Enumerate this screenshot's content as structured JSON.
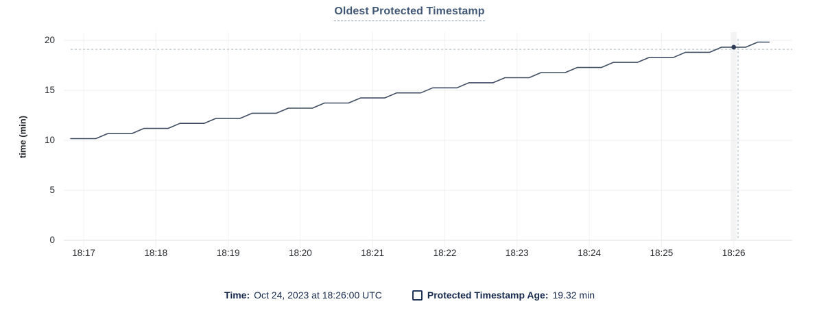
{
  "title": "Oldest Protected Timestamp",
  "y_axis_label": "time (min)",
  "legend": {
    "time_label": "Time:",
    "time_value": "Oct 24, 2023 at 18:26:00 UTC",
    "series_label": "Protected Timestamp Age:",
    "series_value": "19.32 min"
  },
  "colors": {
    "series_line": "#3f4d63",
    "hover_point": "#2d3c57",
    "crosshair": "#a5b8bf",
    "title_text": "#415876",
    "legend_text": "#15294e",
    "grid_horizontal": "#ececec",
    "grid_vertical": "#f1f1f1",
    "axis_line": "#e2e2e2"
  },
  "chart_data": {
    "type": "line",
    "title": "Oldest Protected Timestamp",
    "xlabel": "",
    "ylabel": "time (min)",
    "x_tick_labels": [
      "18:17",
      "18:18",
      "18:19",
      "18:20",
      "18:21",
      "18:22",
      "18:23",
      "18:24",
      "18:25",
      "18:26"
    ],
    "y_ticks": [
      0,
      5,
      10,
      15,
      20
    ],
    "ylim": [
      0,
      20
    ],
    "xlim_offsets_min": [
      -0.275,
      9.81
    ],
    "grid": true,
    "legend_position": "bottom",
    "series": [
      {
        "name": "Protected Timestamp Age",
        "unit": "min",
        "color": "#3f4d63",
        "points_t_offset_min_vs_value": [
          [
            -0.18,
            10.17
          ],
          [
            0.167,
            10.17
          ],
          [
            0.333,
            10.68
          ],
          [
            0.667,
            10.68
          ],
          [
            0.833,
            11.19
          ],
          [
            1.167,
            11.19
          ],
          [
            1.333,
            11.7
          ],
          [
            1.667,
            11.7
          ],
          [
            1.833,
            12.2
          ],
          [
            2.167,
            12.2
          ],
          [
            2.333,
            12.71
          ],
          [
            2.667,
            12.71
          ],
          [
            2.833,
            13.22
          ],
          [
            3.167,
            13.22
          ],
          [
            3.333,
            13.73
          ],
          [
            3.667,
            13.73
          ],
          [
            3.833,
            14.24
          ],
          [
            4.167,
            14.24
          ],
          [
            4.333,
            14.75
          ],
          [
            4.667,
            14.75
          ],
          [
            4.833,
            15.25
          ],
          [
            5.167,
            15.25
          ],
          [
            5.333,
            15.76
          ],
          [
            5.667,
            15.76
          ],
          [
            5.833,
            16.27
          ],
          [
            6.167,
            16.27
          ],
          [
            6.333,
            16.78
          ],
          [
            6.667,
            16.78
          ],
          [
            6.833,
            17.29
          ],
          [
            7.167,
            17.29
          ],
          [
            7.333,
            17.8
          ],
          [
            7.667,
            17.8
          ],
          [
            7.833,
            18.3
          ],
          [
            8.167,
            18.3
          ],
          [
            8.333,
            18.81
          ],
          [
            8.667,
            18.81
          ],
          [
            8.833,
            19.32
          ],
          [
            9.167,
            19.32
          ],
          [
            9.333,
            19.83
          ],
          [
            9.49,
            19.83
          ]
        ]
      }
    ],
    "hover": {
      "snapped_t_offset_min": 9.0,
      "snapped_value": 19.32,
      "time_label": "Oct 24, 2023 at 18:26:00 UTC",
      "crosshair_x_offset_min": 9.06,
      "crosshair_y_value": 19.1
    }
  }
}
